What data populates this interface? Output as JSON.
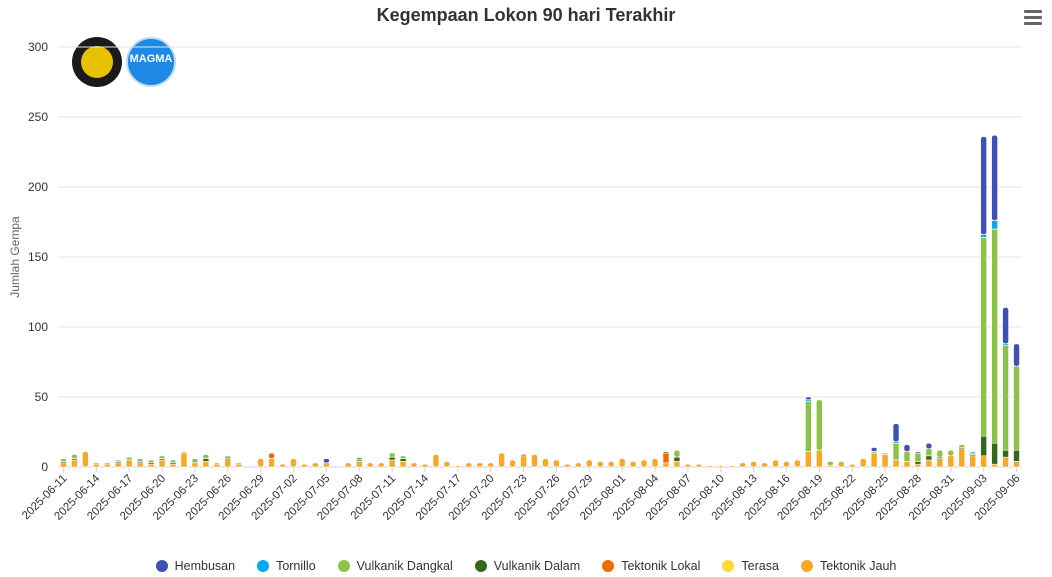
{
  "chart": {
    "title": "Kegempaan Lokon 90 hari Terakhir",
    "ylabel": "Jumlah Gempa",
    "yticks": [
      "0",
      "50",
      "100",
      "150",
      "200",
      "250",
      "300"
    ],
    "menu_icon": "hamburger-menu-icon"
  },
  "logos": {
    "magma_text": "MAGMA"
  },
  "legend": [
    {
      "label": "Hembusan",
      "color": "#3f51b5"
    },
    {
      "label": "Tornillo",
      "color": "#03a9f4"
    },
    {
      "label": "Vulkanik Dangkal",
      "color": "#8bc34a"
    },
    {
      "label": "Vulkanik Dalam",
      "color": "#33691e"
    },
    {
      "label": "Tektonik Lokal",
      "color": "#ef6c00"
    },
    {
      "label": "Terasa",
      "color": "#fdd835"
    },
    {
      "label": "Tektonik Jauh",
      "color": "#f9a825"
    }
  ],
  "chart_data": {
    "type": "bar",
    "stacked": true,
    "title": "Kegempaan Lokon 90 hari Terakhir",
    "ylabel": "Jumlah Gempa",
    "ylim": [
      0,
      300
    ],
    "x_tick_labels": [
      "2025-06-11",
      "2025-06-14",
      "2025-06-17",
      "2025-06-20",
      "2025-06-23",
      "2025-06-26",
      "2025-06-29",
      "2025-07-02",
      "2025-07-05",
      "2025-07-08",
      "2025-07-11",
      "2025-07-14",
      "2025-07-17",
      "2025-07-20",
      "2025-07-23",
      "2025-07-26",
      "2025-07-29",
      "2025-08-01",
      "2025-08-04",
      "2025-08-07",
      "2025-08-10",
      "2025-08-13",
      "2025-08-16",
      "2025-08-19",
      "2025-08-22",
      "2025-08-25",
      "2025-08-28",
      "2025-08-31",
      "2025-09-03",
      "2025-09-06"
    ],
    "categories": [
      "2025-06-11",
      "2025-06-12",
      "2025-06-13",
      "2025-06-14",
      "2025-06-15",
      "2025-06-16",
      "2025-06-17",
      "2025-06-18",
      "2025-06-19",
      "2025-06-20",
      "2025-06-21",
      "2025-06-22",
      "2025-06-23",
      "2025-06-24",
      "2025-06-25",
      "2025-06-26",
      "2025-06-27",
      "2025-06-28",
      "2025-06-29",
      "2025-06-30",
      "2025-07-01",
      "2025-07-02",
      "2025-07-03",
      "2025-07-04",
      "2025-07-05",
      "2025-07-06",
      "2025-07-07",
      "2025-07-08",
      "2025-07-09",
      "2025-07-10",
      "2025-07-11",
      "2025-07-12",
      "2025-07-13",
      "2025-07-14",
      "2025-07-15",
      "2025-07-16",
      "2025-07-17",
      "2025-07-18",
      "2025-07-19",
      "2025-07-20",
      "2025-07-21",
      "2025-07-22",
      "2025-07-23",
      "2025-07-24",
      "2025-07-25",
      "2025-07-26",
      "2025-07-27",
      "2025-07-28",
      "2025-07-29",
      "2025-07-30",
      "2025-07-31",
      "2025-08-01",
      "2025-08-02",
      "2025-08-03",
      "2025-08-04",
      "2025-08-05",
      "2025-08-06",
      "2025-08-07",
      "2025-08-08",
      "2025-08-09",
      "2025-08-10",
      "2025-08-11",
      "2025-08-12",
      "2025-08-13",
      "2025-08-14",
      "2025-08-15",
      "2025-08-16",
      "2025-08-17",
      "2025-08-18",
      "2025-08-19",
      "2025-08-20",
      "2025-08-21",
      "2025-08-22",
      "2025-08-23",
      "2025-08-24",
      "2025-08-25",
      "2025-08-26",
      "2025-08-27",
      "2025-08-28",
      "2025-08-29",
      "2025-08-30",
      "2025-08-31",
      "2025-09-01",
      "2025-09-02",
      "2025-09-03",
      "2025-09-04",
      "2025-09-05",
      "2025-09-06"
    ],
    "series": [
      {
        "name": "Hembusan",
        "color": "#3f51b5",
        "values": [
          0,
          0,
          0,
          0,
          0,
          0,
          0,
          0,
          0,
          0,
          0,
          0,
          0,
          0,
          0,
          0,
          0,
          0,
          0,
          0,
          0,
          0,
          0,
          0,
          3,
          0,
          0,
          0,
          0,
          0,
          0,
          0,
          0,
          0,
          0,
          0,
          0,
          0,
          0,
          0,
          0,
          0,
          0,
          0,
          0,
          0,
          0,
          0,
          0,
          0,
          0,
          0,
          0,
          0,
          0,
          0,
          0,
          0,
          0,
          0,
          0,
          0,
          0,
          0,
          0,
          0,
          0,
          0,
          2,
          0,
          0,
          0,
          0,
          0,
          3,
          0,
          13,
          5,
          1,
          4,
          0,
          0,
          0,
          0,
          70,
          61,
          26,
          16
        ]
      },
      {
        "name": "Tornillo",
        "color": "#03a9f4",
        "values": [
          0,
          0,
          0,
          0,
          0,
          0,
          0,
          0,
          0,
          0,
          0,
          0,
          0,
          0,
          0,
          0,
          0,
          0,
          0,
          0,
          0,
          0,
          0,
          0,
          0,
          0,
          0,
          0,
          0,
          0,
          0,
          0,
          0,
          0,
          0,
          0,
          0,
          0,
          0,
          0,
          0,
          0,
          0,
          0,
          0,
          0,
          0,
          0,
          0,
          0,
          0,
          0,
          0,
          0,
          0,
          0,
          0,
          0,
          0,
          0,
          0,
          0,
          0,
          0,
          0,
          0,
          0,
          0,
          1,
          0,
          0,
          0,
          0,
          0,
          0,
          0,
          1,
          0,
          0,
          0,
          0,
          0,
          0,
          1,
          2,
          6,
          1,
          0
        ]
      },
      {
        "name": "Vulkanik Dangkal",
        "color": "#8bc34a",
        "values": [
          2,
          3,
          0,
          1,
          1,
          1,
          2,
          2,
          2,
          2,
          2,
          1,
          3,
          3,
          1,
          1,
          1,
          0,
          0,
          0,
          0,
          0,
          0,
          0,
          0,
          0,
          0,
          2,
          0,
          0,
          3,
          2,
          0,
          0,
          0,
          0,
          0,
          0,
          0,
          0,
          0,
          0,
          0,
          0,
          0,
          0,
          0,
          0,
          0,
          0,
          0,
          0,
          0,
          0,
          0,
          0,
          5,
          0,
          0,
          0,
          0,
          0,
          0,
          0,
          0,
          0,
          0,
          0,
          36,
          36,
          3,
          0,
          0,
          0,
          1,
          1,
          12,
          7,
          6,
          5,
          5,
          4,
          2,
          1,
          142,
          153,
          75,
          60
        ]
      },
      {
        "name": "Vulkanik Dalam",
        "color": "#33691e",
        "values": [
          1,
          1,
          0,
          0,
          0,
          1,
          0,
          1,
          1,
          1,
          1,
          0,
          0,
          2,
          0,
          1,
          0,
          0,
          0,
          0,
          0,
          0,
          0,
          0,
          0,
          0,
          0,
          1,
          0,
          0,
          2,
          2,
          0,
          0,
          0,
          0,
          0,
          0,
          0,
          0,
          0,
          0,
          1,
          0,
          0,
          0,
          0,
          0,
          0,
          0,
          0,
          0,
          0,
          0,
          0,
          1,
          3,
          0,
          0,
          0,
          0,
          0,
          0,
          0,
          0,
          0,
          0,
          0,
          0,
          0,
          0,
          0,
          0,
          0,
          0,
          0,
          0,
          0,
          2,
          3,
          1,
          0,
          1,
          1,
          14,
          15,
          5,
          8
        ]
      },
      {
        "name": "Tektonik Lokal",
        "color": "#ef6c00",
        "values": [
          0,
          0,
          0,
          0,
          0,
          0,
          0,
          0,
          0,
          0,
          0,
          0,
          0,
          0,
          0,
          0,
          0,
          0,
          0,
          4,
          0,
          0,
          0,
          0,
          0,
          0,
          0,
          0,
          0,
          0,
          0,
          0,
          0,
          0,
          0,
          0,
          0,
          0,
          0,
          0,
          0,
          0,
          0,
          0,
          0,
          0,
          0,
          0,
          0,
          0,
          0,
          0,
          0,
          0,
          0,
          7,
          0,
          0,
          0,
          0,
          0,
          0,
          0,
          0,
          0,
          0,
          0,
          0,
          0,
          0,
          0,
          0,
          0,
          0,
          0,
          0,
          0,
          0,
          0,
          0,
          0,
          0,
          0,
          0,
          0,
          0,
          0,
          0
        ]
      },
      {
        "name": "Terasa",
        "color": "#fdd835",
        "values": [
          0,
          0,
          0,
          0,
          0,
          0,
          0,
          0,
          0,
          0,
          0,
          0,
          0,
          0,
          0,
          0,
          0,
          0,
          0,
          0,
          0,
          0,
          0,
          0,
          0,
          0,
          0,
          0,
          0,
          0,
          0,
          0,
          0,
          0,
          0,
          0,
          0,
          0,
          0,
          0,
          0,
          0,
          0,
          0,
          0,
          0,
          0,
          0,
          0,
          0,
          0,
          0,
          0,
          0,
          0,
          0,
          0,
          0,
          0,
          0,
          0,
          0,
          0,
          0,
          0,
          0,
          0,
          0,
          0,
          0,
          0,
          0,
          0,
          0,
          0,
          0,
          0,
          0,
          0,
          0,
          0,
          0,
          0,
          0,
          0,
          0,
          0,
          0
        ]
      },
      {
        "name": "Tektonik Jauh",
        "color": "#f9a825",
        "values": [
          3,
          5,
          11,
          2,
          2,
          3,
          5,
          3,
          2,
          5,
          2,
          10,
          3,
          4,
          2,
          6,
          2,
          0,
          6,
          6,
          2,
          6,
          2,
          3,
          3,
          0,
          3,
          4,
          3,
          3,
          5,
          4,
          3,
          2,
          9,
          4,
          1,
          3,
          3,
          3,
          10,
          5,
          8,
          9,
          6,
          5,
          2,
          3,
          5,
          4,
          4,
          6,
          4,
          5,
          6,
          3,
          4,
          2,
          2,
          1,
          1,
          1,
          3,
          4,
          3,
          5,
          4,
          5,
          11,
          12,
          1,
          4,
          2,
          6,
          10,
          9,
          5,
          4,
          2,
          5,
          6,
          8,
          13,
          8,
          8,
          2,
          7,
          4
        ]
      }
    ]
  }
}
